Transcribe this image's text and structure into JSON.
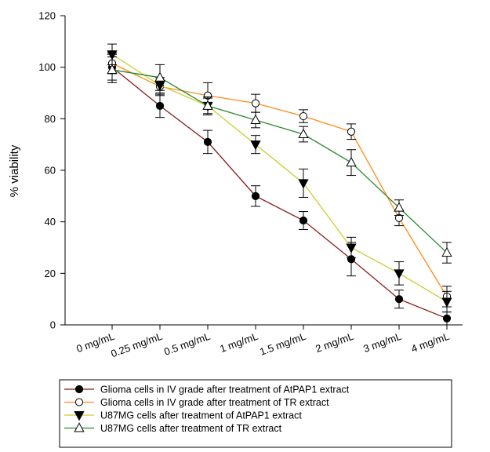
{
  "chart_data": {
    "type": "line",
    "title": "",
    "xlabel": "",
    "ylabel": "% viability",
    "categories": [
      "0 mg/mL",
      "0.25 mg/mL",
      "0.5 mg/mL",
      "1 mg/mL",
      "1.5 mg/mL",
      "2 mg/mL",
      "3 mg/mL",
      "4 mg/mL"
    ],
    "ylim": [
      0,
      120
    ],
    "yticks": [
      0,
      20,
      40,
      60,
      80,
      100,
      120
    ],
    "grid": false,
    "legend_position": "bottom",
    "series": [
      {
        "name": "Glioma cells in IV grade after treatment of AtPAP1 extract",
        "color": "#8b1a1a",
        "marker": "circle-filled",
        "values": [
          100,
          85,
          71,
          50,
          40.5,
          25.5,
          10,
          2.5
        ],
        "errors": [
          5,
          4.5,
          4.5,
          4,
          3.5,
          6.5,
          3.5,
          2.5
        ]
      },
      {
        "name": "Glioma cells in IV grade after treatment of TR extract",
        "color": "#ff8c1a",
        "marker": "circle-open",
        "values": [
          101.5,
          92.5,
          89,
          86,
          81,
          75,
          41.5,
          11
        ],
        "errors": [
          4,
          3.5,
          5,
          3.5,
          2.5,
          3,
          3,
          4
        ]
      },
      {
        "name": "U87MG cells after treatment of AtPAP1 extract",
        "color": "#cccc33",
        "marker": "triangle-down-filled",
        "values": [
          105,
          93,
          85,
          70,
          55,
          30,
          20,
          9
        ],
        "errors": [
          4,
          3,
          3,
          3.5,
          5.5,
          4,
          4.5,
          4
        ]
      },
      {
        "name": "U87MG cells after treatment of TR extract",
        "color": "#2a8a2a",
        "marker": "triangle-up-open",
        "values": [
          99,
          96,
          85,
          79.5,
          74,
          63,
          45.5,
          28
        ],
        "errors": [
          5,
          5,
          3.5,
          3,
          3,
          5,
          3,
          4
        ]
      }
    ]
  }
}
